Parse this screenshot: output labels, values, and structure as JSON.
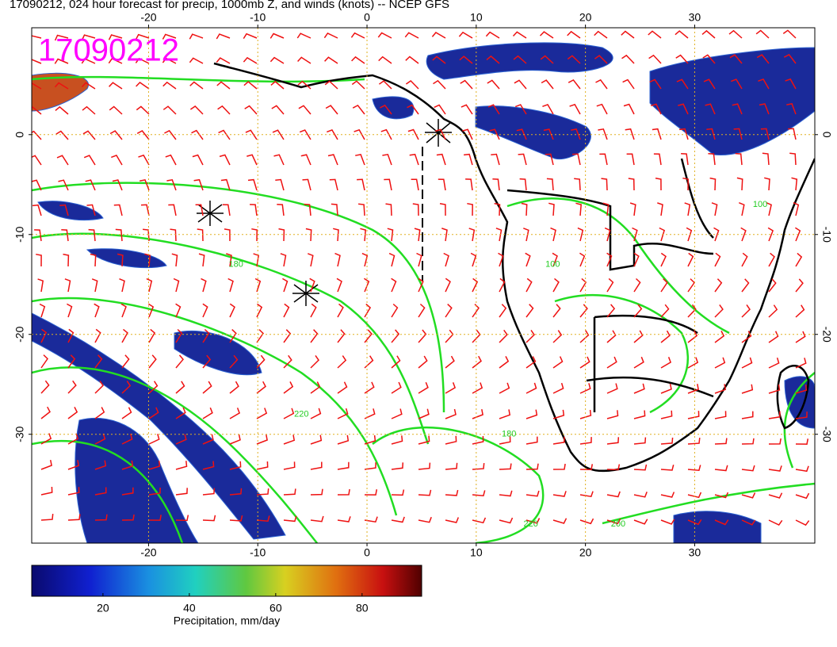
{
  "title": "17090212, 024 hour forecast for precip, 1000mb Z, and winds (knots) -- NCEP GFS",
  "stamp": "17090212",
  "map": {
    "xlim": [
      -30.7,
      41
    ],
    "ylim": [
      -40.9,
      10.7
    ],
    "lon_ticks": [
      -20,
      -10,
      0,
      10,
      20,
      30
    ],
    "lat_ticks": [
      0,
      -10,
      -20,
      -30
    ],
    "contour_labels": [
      {
        "text": "180",
        "lon": -12,
        "lat": -13
      },
      {
        "text": "100",
        "lon": 17,
        "lat": -13
      },
      {
        "text": "100",
        "lon": 36,
        "lat": -7
      },
      {
        "text": "220",
        "lon": -6,
        "lat": -28
      },
      {
        "text": "220",
        "lon": 15,
        "lat": -39
      },
      {
        "text": "200",
        "lon": 23,
        "lat": -39
      },
      {
        "text": "180",
        "lon": 13,
        "lat": -30
      }
    ]
  },
  "colorbar": {
    "clim": [
      3.5,
      93.8
    ],
    "ticks": [
      20,
      40,
      60,
      80
    ],
    "label": "Precipitation, mm/day"
  }
}
